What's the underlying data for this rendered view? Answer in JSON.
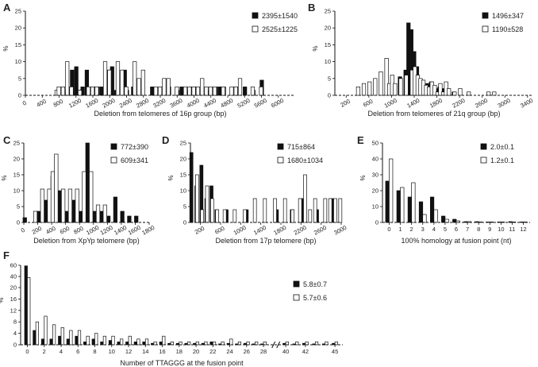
{
  "chart_data": [
    {
      "id": "A",
      "letter": "A",
      "type": "bar",
      "xlabel": "Deletion from telomeres of 16p group (bp)",
      "ylabel": "%",
      "xlim": [
        0,
        6400
      ],
      "ylim": [
        0,
        25
      ],
      "xticks": [
        0,
        400,
        800,
        1200,
        1600,
        2000,
        2400,
        2800,
        3200,
        3600,
        4000,
        4400,
        4800,
        5200,
        5600,
        6000
      ],
      "yticks": [
        0,
        5,
        10,
        15,
        20,
        25
      ],
      "legend": [
        "2395±1540",
        "2525±1225"
      ],
      "series": [
        {
          "name": "2395±1540",
          "fill": "black",
          "x": [
            1000,
            1050,
            1150,
            1250,
            1350,
            1400,
            1500,
            1650,
            1750,
            1850,
            2000,
            2100,
            2200,
            2400,
            2450,
            2600,
            3050,
            3450,
            3650,
            3750,
            3850,
            3950,
            4050,
            4350,
            4550,
            4650,
            4750,
            5050,
            5250,
            5450,
            5650
          ],
          "values": [
            1.5,
            2.5,
            7.5,
            8.5,
            1.5,
            2.5,
            7.5,
            2.5,
            2.5,
            2.5,
            7.5,
            8.5,
            1.5,
            7.5,
            1.5,
            2.5,
            2.5,
            2.5,
            1.5,
            2.5,
            1.5,
            2.5,
            2.5,
            1.5,
            2.5,
            2.5,
            2.5,
            2.5,
            2.5,
            1.5,
            4.5
          ]
        },
        {
          "name": "2525±1225",
          "fill": "white",
          "x": [
            700,
            750,
            850,
            950,
            1050,
            1250,
            1450,
            1550,
            1650,
            1850,
            1950,
            2150,
            2250,
            2350,
            2550,
            2650,
            2750,
            3050,
            3150,
            3250,
            3350,
            3550,
            3750,
            3850,
            3950,
            4050,
            4150,
            4250,
            4350,
            4450,
            4650,
            4850,
            4950,
            5050,
            5350,
            5550
          ],
          "values": [
            1.5,
            2.5,
            2.5,
            10,
            2.5,
            1.5,
            2.5,
            2.5,
            2.5,
            10,
            7.5,
            10,
            7.5,
            2.5,
            10,
            5,
            7.5,
            2.5,
            2.5,
            5,
            5,
            2.5,
            2.5,
            2.5,
            2.5,
            2.5,
            5,
            2.5,
            2.5,
            2.5,
            2.5,
            2.5,
            2.5,
            5,
            2.5,
            2.5
          ]
        }
      ]
    },
    {
      "id": "B",
      "letter": "B",
      "type": "bar",
      "xlabel": "Deletion from telomeres of 21q group (bp)",
      "ylabel": "%",
      "xlim": [
        0,
        3500
      ],
      "ylim": [
        0,
        25
      ],
      "xticks": [
        200,
        600,
        1000,
        1400,
        1800,
        2200,
        2600,
        3000,
        3400
      ],
      "yticks": [
        0,
        5,
        10,
        15,
        20,
        25
      ],
      "legend": [
        "1496±347",
        "1190±528"
      ],
      "series": [
        {
          "name": "1496±347",
          "fill": "black",
          "x": [
            1080,
            1180,
            1280,
            1330,
            1380,
            1430,
            1480,
            1530,
            1580,
            1630,
            1680,
            1730,
            1780,
            1830,
            1880,
            1930,
            2030,
            2130
          ],
          "values": [
            2,
            5.5,
            7.5,
            21.5,
            19.5,
            13,
            8.5,
            4,
            2,
            3.5,
            3.5,
            4,
            2.5,
            2,
            2.5,
            2,
            1,
            1
          ]
        },
        {
          "name": "1190±528",
          "fill": "white",
          "x": [
            380,
            480,
            580,
            680,
            780,
            880,
            930,
            980,
            1030,
            1130,
            1230,
            1330,
            1380,
            1430,
            1480,
            1530,
            1580,
            1630,
            1680,
            1730,
            1780,
            1830,
            1880,
            1930,
            1980,
            2080,
            2180,
            2330,
            2680,
            2780
          ],
          "values": [
            2.5,
            3.5,
            4,
            5,
            7,
            11,
            3.5,
            6,
            3.5,
            5,
            6,
            7.5,
            8.5,
            6,
            5,
            4.5,
            3,
            2.5,
            4,
            3,
            1,
            3.5,
            1,
            4,
            2,
            1,
            2,
            1,
            1,
            1
          ]
        }
      ]
    },
    {
      "id": "C",
      "letter": "C",
      "type": "bar",
      "xlabel": "Deletion from XpYp telomere (bp)",
      "ylabel": "%",
      "xlim": [
        0,
        1800
      ],
      "ylim": [
        0,
        25
      ],
      "xticks": [
        0,
        200,
        400,
        600,
        800,
        1000,
        1200,
        1400,
        1600,
        1800
      ],
      "yticks": [
        0,
        5,
        10,
        15,
        20,
        25
      ],
      "legend": [
        "772±390",
        "609±341"
      ],
      "series": [
        {
          "name": "772±390",
          "fill": "black",
          "x": [
            40,
            240,
            340,
            440,
            540,
            640,
            740,
            840,
            940,
            1040,
            1140,
            1240,
            1340,
            1440,
            1540,
            1640
          ],
          "values": [
            1.5,
            3.5,
            7,
            14.5,
            10,
            3.5,
            7,
            3.5,
            25,
            3.5,
            3.5,
            2,
            8,
            3.5,
            2,
            2
          ]
        },
        {
          "name": "609±341",
          "fill": "white",
          "x": [
            140,
            240,
            340,
            390,
            440,
            540,
            640,
            740,
            840,
            940,
            1040,
            1140
          ],
          "values": [
            3.5,
            10.5,
            10.5,
            16,
            21.5,
            10.5,
            10.5,
            10.5,
            16,
            16,
            5.5,
            5.5
          ]
        }
      ]
    },
    {
      "id": "D",
      "letter": "D",
      "type": "bar",
      "xlabel": "Deletion from 17p telomere (bp)",
      "ylabel": "%",
      "xlim": [
        0,
        3000
      ],
      "ylim": [
        0,
        25
      ],
      "xticks": [
        200,
        600,
        1000,
        1400,
        1800,
        2200,
        2600,
        3000
      ],
      "yticks": [
        0,
        5,
        10,
        15,
        20,
        25
      ],
      "legend": [
        "715±864",
        "1680±1034"
      ],
      "series": [
        {
          "name": "715±864",
          "fill": "black",
          "x": [
            50,
            150,
            250,
            350,
            450,
            550,
            750,
            1150,
            1750,
            2050,
            2250,
            2550,
            2850
          ],
          "values": [
            22,
            11.5,
            18,
            7.5,
            11.5,
            4,
            4,
            4,
            4,
            4,
            7.5,
            4,
            7.5
          ]
        },
        {
          "name": "1680±1034",
          "fill": "white",
          "x": [
            100,
            200,
            300,
            400,
            500,
            650,
            850,
            1050,
            1250,
            1450,
            1650,
            1850,
            2000,
            2150,
            2250,
            2350,
            2450,
            2650,
            2750,
            2850,
            2950
          ],
          "values": [
            15,
            4,
            11.5,
            7.5,
            4,
            4,
            4,
            4,
            7.5,
            7.5,
            7.5,
            7.5,
            4,
            7.5,
            15,
            4,
            7.5,
            7.5,
            7.5,
            7.5,
            7.5
          ]
        }
      ]
    },
    {
      "id": "E",
      "letter": "E",
      "type": "bar",
      "xlabel": "100% homology at fusion point (nt)",
      "ylabel": "%",
      "xlim": [
        -0.6,
        12.6
      ],
      "ylim": [
        0,
        50
      ],
      "xticks": [
        0,
        1,
        2,
        3,
        4,
        5,
        6,
        7,
        8,
        9,
        10,
        11,
        12
      ],
      "yticks": [
        0,
        10,
        20,
        30,
        40,
        50
      ],
      "legend": [
        "2.0±0.1",
        "1.2±0.1"
      ],
      "series": [
        {
          "name": "2.0±0.1",
          "fill": "black",
          "x": [
            0,
            1,
            2,
            3,
            4,
            5,
            6,
            7,
            8,
            9,
            10,
            11,
            12
          ],
          "values": [
            26,
            20,
            16,
            13,
            16,
            4,
            2,
            0.5,
            0.5,
            0.3,
            0.3,
            0.5,
            0.3
          ]
        },
        {
          "name": "1.2±0.1",
          "fill": "white",
          "x": [
            0,
            1,
            2,
            3,
            4,
            5,
            6,
            7,
            8,
            9,
            10,
            11,
            12
          ],
          "values": [
            40,
            22,
            25,
            5,
            8,
            2,
            1,
            0.5,
            0.3,
            0.3,
            0.3,
            0.3,
            0.3
          ]
        }
      ]
    },
    {
      "id": "F",
      "letter": "F",
      "type": "bar",
      "xlabel": "Number of TTAGGG at the fusion point",
      "ylabel": "%",
      "xlim": [
        -0.8,
        45.8
      ],
      "ylim": [
        0,
        60
      ],
      "xticks": [
        0,
        2,
        4,
        6,
        8,
        10,
        12,
        14,
        16,
        18,
        20,
        22,
        24,
        26,
        28,
        40,
        42,
        45
      ],
      "axis_break_after": 29,
      "axis_break_resume": 40,
      "yticks": [
        0,
        4,
        8,
        12,
        16,
        20,
        40,
        60
      ],
      "legend": [
        "5.8±0.7",
        "5.7±0.6"
      ],
      "series": [
        {
          "name": "5.8±0.7",
          "fill": "black",
          "x": [
            0,
            1,
            2,
            3,
            4,
            5,
            6,
            7,
            8,
            9,
            10,
            11,
            12,
            13,
            14,
            15,
            16,
            17,
            18,
            19,
            20,
            21,
            22,
            23,
            24,
            25,
            26,
            27,
            28,
            40,
            41,
            42,
            43,
            44,
            45
          ],
          "values": [
            59,
            5,
            2,
            2,
            3,
            2,
            3,
            1,
            2,
            1,
            1.5,
            1,
            1,
            1,
            1,
            0.5,
            1,
            0.5,
            0.5,
            0.5,
            0.5,
            0.5,
            1,
            0.3,
            0.5,
            0.3,
            0.5,
            0.3,
            0.3,
            0.5,
            0.3,
            0.5,
            0.3,
            0.3,
            0.5
          ]
        },
        {
          "name": "5.7±0.6",
          "fill": "white",
          "x": [
            0,
            1,
            2,
            3,
            4,
            5,
            6,
            7,
            8,
            9,
            10,
            11,
            12,
            13,
            14,
            15,
            16,
            17,
            18,
            19,
            20,
            21,
            22,
            23,
            24,
            25,
            26,
            27,
            28,
            40,
            41,
            42,
            43,
            44,
            45
          ],
          "values": [
            38,
            8,
            10,
            7,
            6,
            5,
            5,
            3,
            4,
            3,
            3,
            2,
            3,
            2,
            2,
            1,
            3,
            1,
            1,
            1,
            1,
            1,
            1,
            1,
            2,
            1,
            1,
            1,
            1,
            1,
            1,
            1,
            1,
            1,
            1
          ]
        }
      ]
    }
  ]
}
